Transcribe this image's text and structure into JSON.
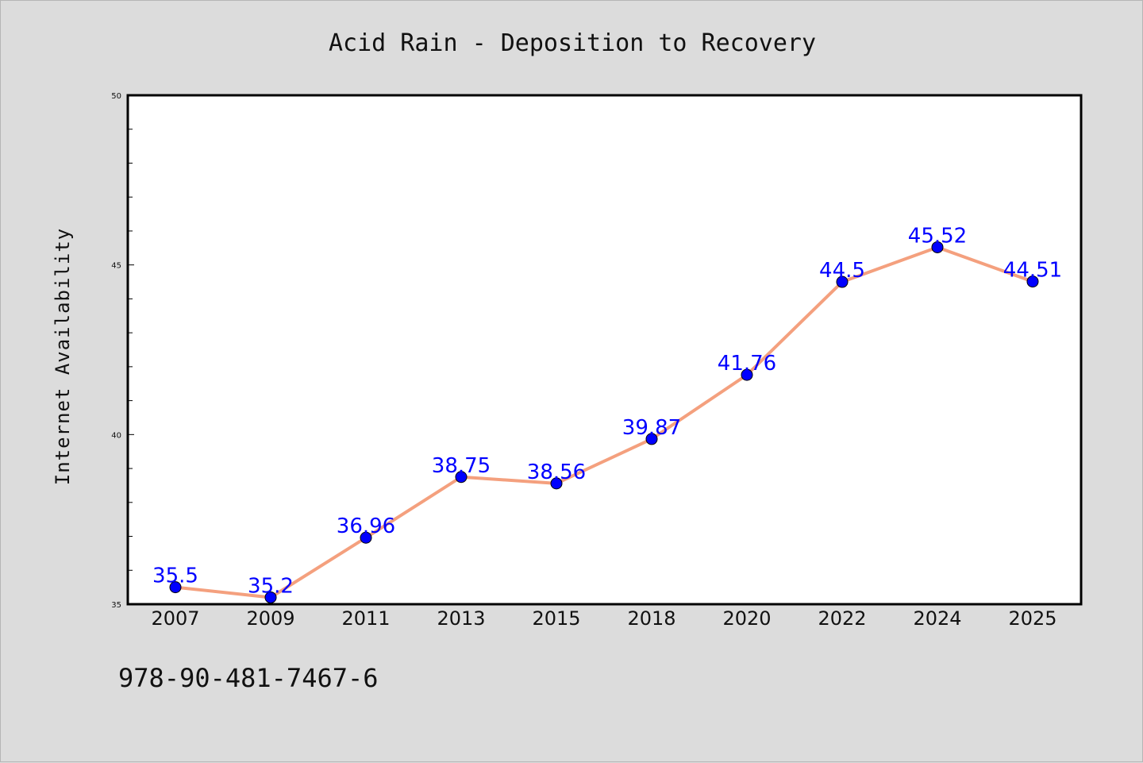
{
  "chart_data": {
    "type": "line",
    "title": "Acid Rain - Deposition to Recovery",
    "xlabel": "",
    "ylabel": "Internet Availability",
    "categories": [
      "2007",
      "2009",
      "2011",
      "2013",
      "2015",
      "2018",
      "2020",
      "2022",
      "2024",
      "2025"
    ],
    "series": [
      {
        "values": [
          35.5,
          35.2,
          36.96,
          38.75,
          38.56,
          39.87,
          41.76,
          44.5,
          45.52,
          44.51
        ],
        "labels": [
          "35.5",
          "35.2",
          "36.96",
          "38.75",
          "38.56",
          "39.87",
          "41.76",
          "44.5",
          "45.52",
          "44.51"
        ],
        "line_color": "#f4a07e",
        "marker_color": "#0000ff"
      }
    ],
    "ylim": [
      35,
      50
    ],
    "yticks": [
      35,
      40,
      45,
      50
    ],
    "ytick_labels": [
      "35",
      "40",
      "45",
      "50"
    ],
    "grid": false,
    "legend": "none"
  },
  "footer": {
    "text": "978-90-481-7467-6"
  },
  "colors": {
    "background": "#dcdcdc",
    "plot_background": "#ffffff",
    "axis": "#000000",
    "data_label": "#0000ff"
  }
}
